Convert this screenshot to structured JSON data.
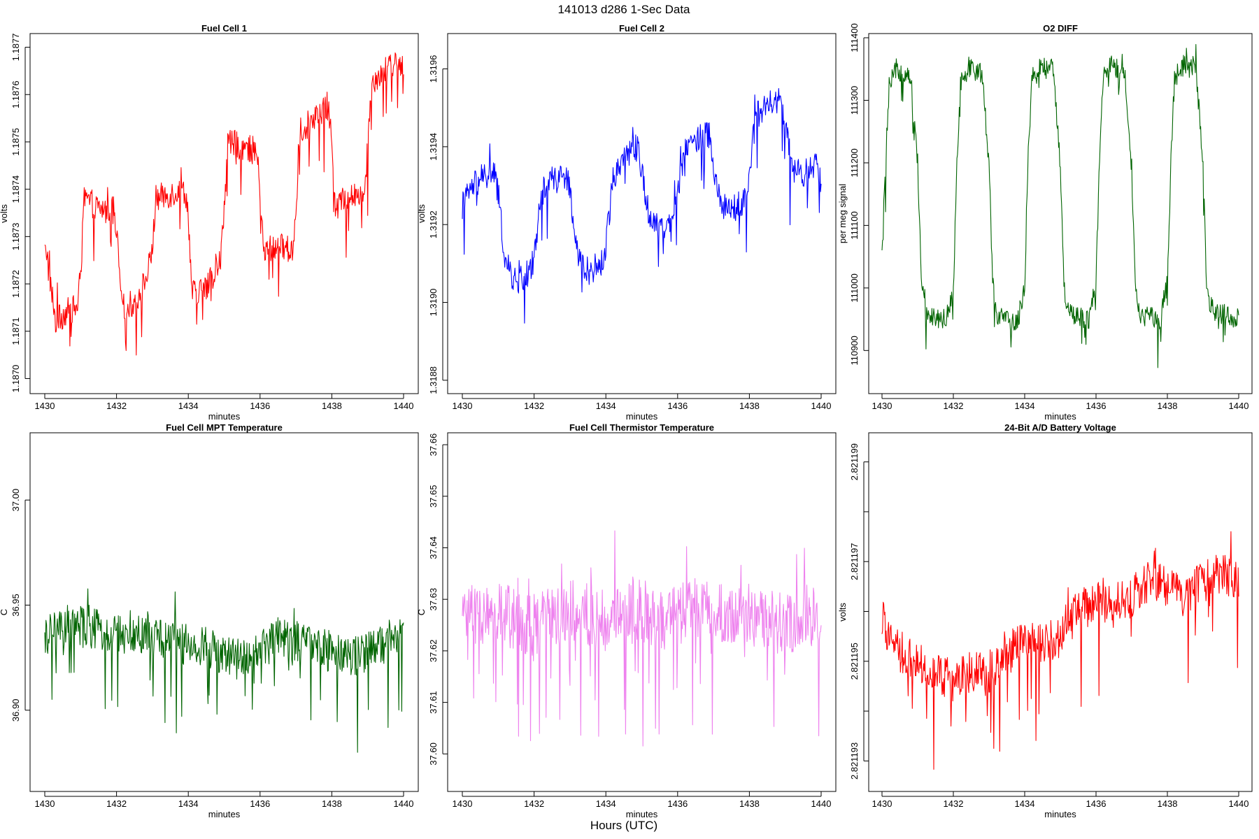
{
  "figure": {
    "title": "141013   d286   1-Sec Data",
    "footer_label": "Hours (UTC)"
  },
  "chart_data": [
    {
      "type": "line",
      "title": "Fuel Cell 1",
      "xlabel": "minutes",
      "ylabel": "volts",
      "color": "#ff0000",
      "xlim": [
        1430,
        1440
      ],
      "ylim": [
        1.18698,
        1.18772
      ],
      "xticks": [
        1430,
        1432,
        1434,
        1436,
        1438,
        1440
      ],
      "xtick_labels": [
        "1430",
        "1432",
        "1434",
        "1436",
        "1438",
        "1440"
      ],
      "yticks": [
        1.187,
        1.1871,
        1.1872,
        1.1873,
        1.1874,
        1.1875,
        1.1876,
        1.1877
      ],
      "ytick_labels": [
        "1.1870",
        "1.1871",
        "1.1872",
        "1.1873",
        "1.1874",
        "1.1875",
        "1.1876",
        "1.1877"
      ],
      "series": [
        {
          "x": [
            1430.0,
            1430.3,
            1430.6,
            1430.9,
            1431.0,
            1431.1,
            1431.5,
            1431.9,
            1432.0,
            1432.2,
            1432.5,
            1432.9,
            1433.0,
            1433.1,
            1433.5,
            1433.9,
            1434.0,
            1434.1,
            1434.5,
            1434.9,
            1435.0,
            1435.1,
            1435.5,
            1435.9,
            1436.0,
            1436.1,
            1436.5,
            1436.9,
            1437.0,
            1437.1,
            1437.5,
            1437.9,
            1438.0,
            1438.1,
            1438.5,
            1438.9,
            1439.0,
            1439.1,
            1439.5,
            1439.9,
            1440.0
          ],
          "y": [
            1.1873,
            1.18712,
            1.18714,
            1.18715,
            1.18722,
            1.18738,
            1.18736,
            1.18735,
            1.1873,
            1.18715,
            1.18716,
            1.18722,
            1.18728,
            1.18738,
            1.18739,
            1.1874,
            1.18735,
            1.18718,
            1.18719,
            1.18725,
            1.18735,
            1.1875,
            1.18749,
            1.18748,
            1.1874,
            1.18727,
            1.18728,
            1.18727,
            1.18735,
            1.18752,
            1.18755,
            1.18757,
            1.1875,
            1.18737,
            1.18738,
            1.1874,
            1.18748,
            1.18763,
            1.18765,
            1.18768,
            1.18762
          ]
        }
      ]
    },
    {
      "type": "line",
      "title": "Fuel Cell 2",
      "xlabel": "minutes",
      "ylabel": "volts",
      "color": "#0000ff",
      "xlim": [
        1430,
        1440
      ],
      "ylim": [
        1.31878,
        1.31968
      ],
      "xticks": [
        1430,
        1432,
        1434,
        1436,
        1438,
        1440
      ],
      "xtick_labels": [
        "1430",
        "1432",
        "1434",
        "1436",
        "1438",
        "1440"
      ],
      "yticks": [
        1.3188,
        1.319,
        1.3192,
        1.3194,
        1.3196
      ],
      "ytick_labels": [
        "1.3188",
        "1.3190",
        "1.3192",
        "1.3194",
        "1.3196"
      ],
      "series": [
        {
          "x": [
            1430.0,
            1430.3,
            1430.6,
            1430.9,
            1431.0,
            1431.2,
            1431.5,
            1431.9,
            1432.0,
            1432.2,
            1432.5,
            1432.9,
            1433.0,
            1433.2,
            1433.5,
            1433.9,
            1434.0,
            1434.2,
            1434.5,
            1434.9,
            1435.0,
            1435.2,
            1435.5,
            1435.9,
            1436.0,
            1436.2,
            1436.5,
            1436.9,
            1437.0,
            1437.2,
            1437.5,
            1437.9,
            1438.0,
            1438.2,
            1438.5,
            1438.9,
            1439.0,
            1439.2,
            1439.5,
            1439.9,
            1440.0
          ],
          "y": [
            1.31925,
            1.3193,
            1.31932,
            1.31933,
            1.31928,
            1.3191,
            1.31905,
            1.31908,
            1.31912,
            1.31928,
            1.31932,
            1.31933,
            1.31928,
            1.31912,
            1.31908,
            1.3191,
            1.31915,
            1.31932,
            1.31938,
            1.3194,
            1.31935,
            1.31922,
            1.3192,
            1.31922,
            1.31928,
            1.3194,
            1.31942,
            1.31943,
            1.31935,
            1.31925,
            1.31924,
            1.31926,
            1.31935,
            1.31948,
            1.3195,
            1.31952,
            1.31945,
            1.31934,
            1.31933,
            1.31935,
            1.3193
          ]
        }
      ]
    },
    {
      "type": "line",
      "title": "O2 DIFF",
      "xlabel": "minutes",
      "ylabel": "per meg signal",
      "color": "#006400",
      "xlim": [
        1430,
        1440
      ],
      "ylim": [
        110840,
        111400
      ],
      "xticks": [
        1430,
        1432,
        1434,
        1436,
        1438,
        1440
      ],
      "xtick_labels": [
        "1430",
        "1432",
        "1434",
        "1436",
        "1438",
        "1440"
      ],
      "yticks": [
        110900,
        111000,
        111100,
        111200,
        111300,
        111400
      ],
      "ytick_labels": [
        "110900",
        "111000",
        "111100",
        "111200",
        "111300",
        "111400"
      ],
      "series": [
        {
          "x": [
            1430.0,
            1430.1,
            1430.2,
            1430.4,
            1430.8,
            1431.0,
            1431.1,
            1431.2,
            1431.4,
            1431.8,
            1432.0,
            1432.1,
            1432.2,
            1432.4,
            1432.8,
            1433.0,
            1433.1,
            1433.2,
            1433.4,
            1433.8,
            1434.0,
            1434.1,
            1434.2,
            1434.4,
            1434.8,
            1435.0,
            1435.1,
            1435.2,
            1435.4,
            1435.8,
            1436.0,
            1436.1,
            1436.2,
            1436.4,
            1436.8,
            1437.0,
            1437.1,
            1437.2,
            1437.4,
            1437.8,
            1438.0,
            1438.1,
            1438.2,
            1438.4,
            1438.8,
            1439.0,
            1439.1,
            1439.2,
            1439.4,
            1439.8,
            1440.0
          ],
          "y": [
            111050,
            111200,
            111320,
            111350,
            111340,
            111200,
            111020,
            110970,
            110955,
            110950,
            111000,
            111200,
            111330,
            111350,
            111345,
            111200,
            111020,
            110960,
            110950,
            110945,
            111000,
            111210,
            111335,
            111355,
            111350,
            111190,
            111010,
            110960,
            110955,
            110950,
            111010,
            111210,
            111335,
            111355,
            111350,
            111190,
            111010,
            110960,
            110955,
            110950,
            111010,
            111210,
            111335,
            111355,
            111355,
            111190,
            111000,
            110970,
            110960,
            110955,
            110950
          ]
        }
      ]
    },
    {
      "type": "line",
      "title": "Fuel Cell MPT Temperature",
      "xlabel": "minutes",
      "ylabel": "C",
      "color": "#006400",
      "xlim": [
        1430,
        1440
      ],
      "ylim": [
        36.864,
        37.03
      ],
      "xticks": [
        1430,
        1432,
        1434,
        1436,
        1438,
        1440
      ],
      "xtick_labels": [
        "1430",
        "1432",
        "1434",
        "1436",
        "1438",
        "1440"
      ],
      "yticks": [
        36.9,
        36.95,
        37.0
      ],
      "ytick_labels": [
        "36.90",
        "36.95",
        "37.00"
      ],
      "series": [
        {
          "x": [
            1430.0,
            1430.5,
            1431.0,
            1431.5,
            1432.0,
            1432.5,
            1433.0,
            1433.5,
            1434.0,
            1434.5,
            1435.0,
            1435.5,
            1436.0,
            1436.5,
            1437.0,
            1437.5,
            1438.0,
            1438.5,
            1439.0,
            1439.5,
            1440.0
          ],
          "y": [
            36.935,
            36.938,
            36.94,
            36.938,
            36.936,
            36.938,
            36.935,
            36.933,
            36.932,
            36.93,
            36.926,
            36.924,
            36.928,
            36.935,
            36.933,
            36.93,
            36.928,
            36.925,
            36.927,
            36.932,
            36.94
          ]
        }
      ]
    },
    {
      "type": "line",
      "title": "Fuel Cell Thermistor Temperature",
      "xlabel": "minutes",
      "ylabel": "C",
      "color": "#ee82ee",
      "xlim": [
        1430,
        1440
      ],
      "ylim": [
        37.5938,
        37.6615
      ],
      "xticks": [
        1430,
        1432,
        1434,
        1436,
        1438,
        1440
      ],
      "xtick_labels": [
        "1430",
        "1432",
        "1434",
        "1436",
        "1438",
        "1440"
      ],
      "yticks": [
        37.6,
        37.61,
        37.62,
        37.63,
        37.64,
        37.65,
        37.66
      ],
      "ytick_labels": [
        "37.60",
        "37.61",
        "37.62",
        "37.63",
        "37.64",
        "37.65",
        "37.66"
      ],
      "series": [
        {
          "x": [
            1430.0,
            1430.5,
            1431.0,
            1431.5,
            1432.0,
            1432.5,
            1433.0,
            1433.5,
            1434.0,
            1434.5,
            1435.0,
            1435.5,
            1436.0,
            1436.5,
            1437.0,
            1437.5,
            1438.0,
            1438.5,
            1439.0,
            1439.5,
            1440.0
          ],
          "y": [
            37.628,
            37.626,
            37.627,
            37.626,
            37.625,
            37.627,
            37.628,
            37.627,
            37.626,
            37.627,
            37.628,
            37.626,
            37.627,
            37.628,
            37.628,
            37.626,
            37.627,
            37.626,
            37.625,
            37.627,
            37.626
          ]
        }
      ]
    },
    {
      "type": "line",
      "title": "24-Bit A/D Battery Voltage",
      "xlabel": "minutes",
      "ylabel": "volts",
      "color": "#ff0000",
      "xlim": [
        1430,
        1440
      ],
      "ylim": [
        2.8211925,
        2.8211995
      ],
      "xticks": [
        1430,
        1432,
        1434,
        1436,
        1438,
        1440
      ],
      "xtick_labels": [
        "1430",
        "1432",
        "1434",
        "1436",
        "1438",
        "1440"
      ],
      "yticks": [
        2.821193,
        2.821194,
        2.821195,
        2.821196,
        2.821197,
        2.821198,
        2.821199
      ],
      "ytick_labels": [
        "2.821193",
        "",
        "2.821195",
        "",
        "2.821197",
        "",
        "2.821199"
      ],
      "series": [
        {
          "x": [
            1430.0,
            1430.5,
            1431.0,
            1431.5,
            1432.0,
            1432.5,
            1433.0,
            1433.5,
            1434.0,
            1434.5,
            1435.0,
            1435.5,
            1436.0,
            1436.5,
            1437.0,
            1437.5,
            1438.0,
            1438.5,
            1439.0,
            1439.5,
            1440.0
          ],
          "y": [
            2.8211958,
            2.8211952,
            2.821195,
            2.8211948,
            2.8211946,
            2.8211948,
            2.8211947,
            2.8211951,
            2.8211955,
            2.8211953,
            2.8211956,
            2.821196,
            2.8211962,
            2.8211961,
            2.8211963,
            2.8211966,
            2.8211965,
            2.8211963,
            2.8211966,
            2.8211968,
            2.8211966
          ]
        }
      ]
    }
  ]
}
